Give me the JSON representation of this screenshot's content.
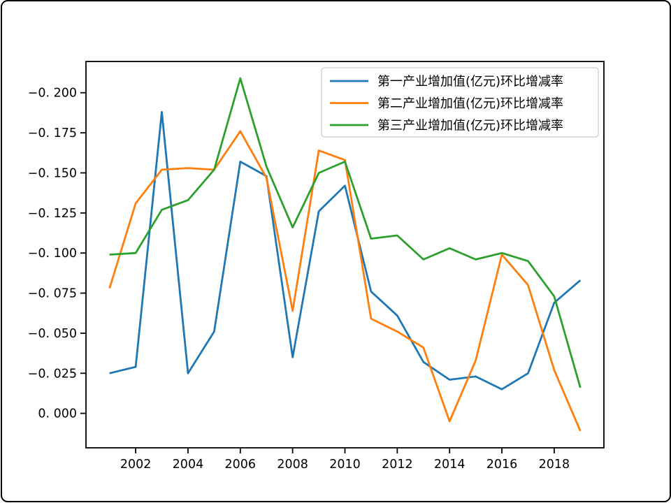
{
  "window": {
    "background": "#ffffff",
    "frame_color": "#000000"
  },
  "chart_data": {
    "type": "line",
    "title": "",
    "xlabel": "",
    "ylabel": "",
    "grid": false,
    "y_axis_inverted": true,
    "x": [
      2001,
      2002,
      2003,
      2004,
      2005,
      2006,
      2007,
      2008,
      2009,
      2010,
      2011,
      2012,
      2013,
      2014,
      2015,
      2016,
      2017,
      2018,
      2019
    ],
    "series": [
      {
        "name": "第一产业增加值(亿元)环比增减率",
        "slug": "primary-industry",
        "color": "#1f77b4",
        "values": [
          -0.025,
          -0.029,
          -0.188,
          -0.025,
          -0.051,
          -0.157,
          -0.148,
          -0.035,
          -0.126,
          -0.142,
          -0.076,
          -0.061,
          -0.032,
          -0.021,
          -0.023,
          -0.015,
          -0.025,
          -0.069,
          -0.083
        ]
      },
      {
        "name": "第二产业增加值(亿元)环比增减率",
        "slug": "secondary-industry",
        "color": "#ff7f0e",
        "values": [
          -0.078,
          -0.131,
          -0.152,
          -0.153,
          -0.152,
          -0.176,
          -0.147,
          -0.064,
          -0.164,
          -0.158,
          -0.059,
          -0.051,
          -0.041,
          0.005,
          -0.033,
          -0.099,
          -0.08,
          -0.027,
          0.011
        ]
      },
      {
        "name": "第三产业增加值(亿元)环比增减率",
        "slug": "tertiary-industry",
        "color": "#2ca02c",
        "values": [
          -0.099,
          -0.1,
          -0.127,
          -0.133,
          -0.152,
          -0.209,
          -0.154,
          -0.116,
          -0.15,
          -0.157,
          -0.109,
          -0.111,
          -0.096,
          -0.103,
          -0.096,
          -0.1,
          -0.095,
          -0.073,
          -0.016
        ]
      }
    ],
    "xlim": [
      2000.1,
      2019.9
    ],
    "ylim_top": -0.2195,
    "ylim_bottom": 0.0215,
    "x_ticks": [
      2002,
      2004,
      2006,
      2008,
      2010,
      2012,
      2014,
      2016,
      2018
    ],
    "x_tick_labels": [
      "2002",
      "2004",
      "2006",
      "2008",
      "2010",
      "2012",
      "2014",
      "2016",
      "2018"
    ],
    "y_ticks": [
      -0.2,
      -0.175,
      -0.15,
      -0.125,
      -0.1,
      -0.075,
      -0.05,
      -0.025,
      0.0
    ],
    "y_tick_labels": [
      "−0. 200",
      "−0. 175",
      "−0. 150",
      "−0. 125",
      "−0. 100",
      "−0. 075",
      "−0. 050",
      "−0. 025",
      "0. 000"
    ],
    "legend_position": "upper right",
    "axis_color": "#000000"
  }
}
